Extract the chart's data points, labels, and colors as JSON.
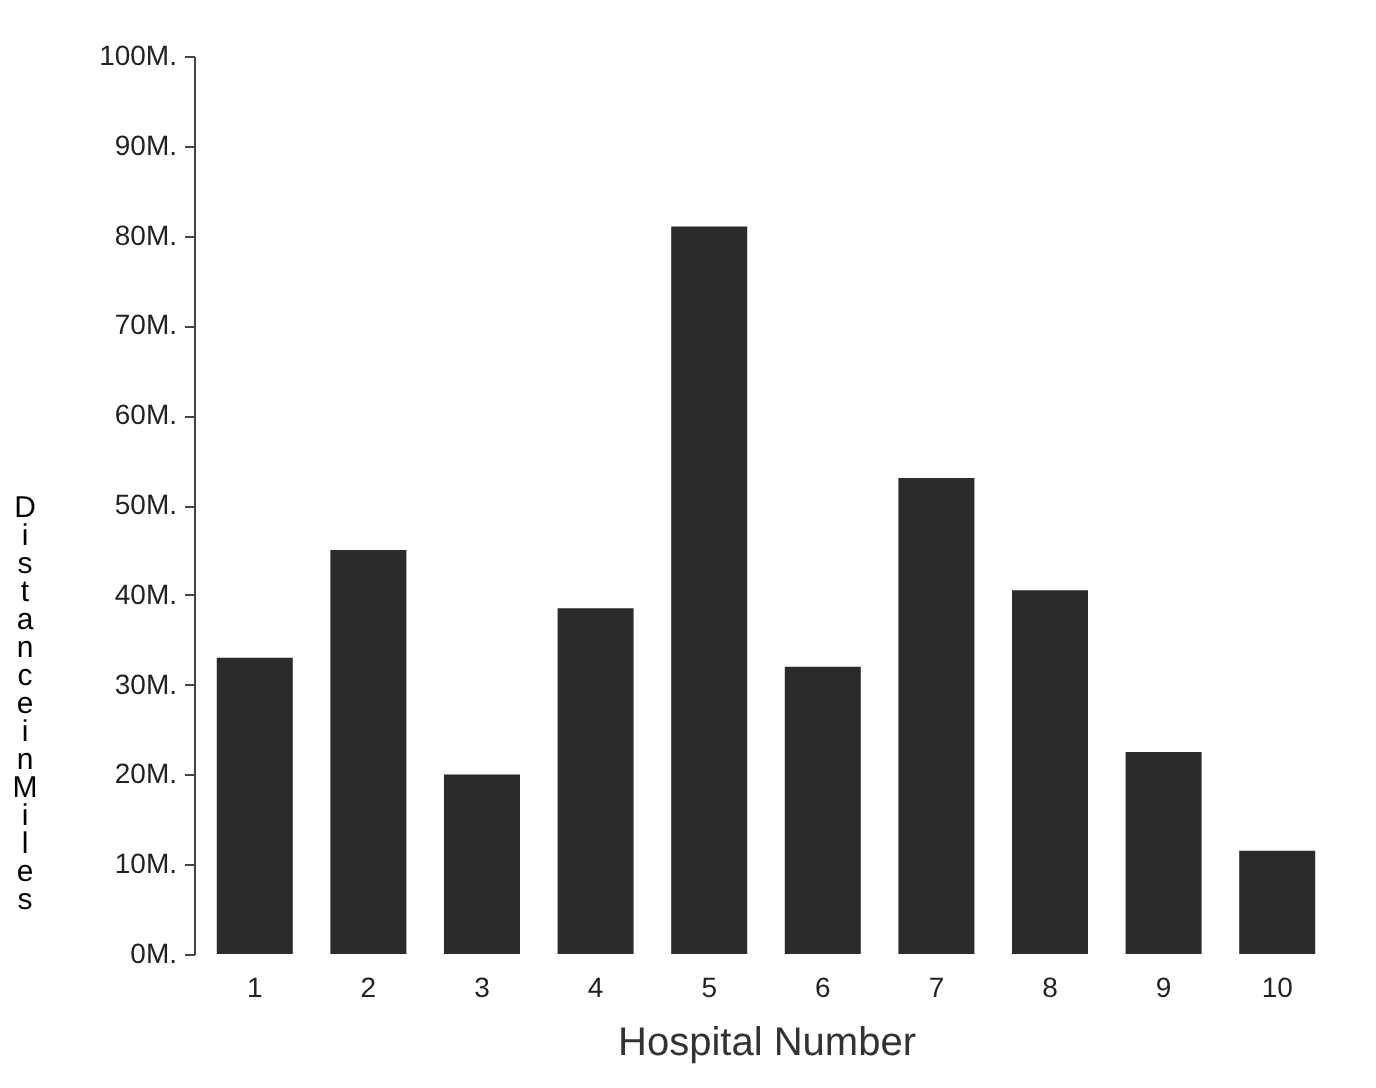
{
  "chart_data": {
    "type": "bar",
    "xlabel": "Hospital Number",
    "ylabel": "Distance in Miles",
    "categories": [
      "1",
      "2",
      "3",
      "4",
      "5",
      "6",
      "7",
      "8",
      "9",
      "10"
    ],
    "values": [
      33,
      45,
      20,
      38.5,
      81,
      32,
      53,
      40.5,
      22.5,
      11.5
    ],
    "color": "#2b2b2b",
    "ylim": [
      0,
      100
    ],
    "yticks": [
      {
        "value": 0,
        "label": "0M."
      },
      {
        "value": 10,
        "label": "10M."
      },
      {
        "value": 20,
        "label": "20M."
      },
      {
        "value": 30,
        "label": "30M."
      },
      {
        "value": 40,
        "label": "40M."
      },
      {
        "value": 50,
        "label": "50M."
      },
      {
        "value": 60,
        "label": "60M."
      },
      {
        "value": 70,
        "label": "70M."
      },
      {
        "value": 80,
        "label": "80M."
      },
      {
        "value": 90,
        "label": "90M."
      },
      {
        "value": 100,
        "label": "100M."
      }
    ],
    "grid": false
  }
}
